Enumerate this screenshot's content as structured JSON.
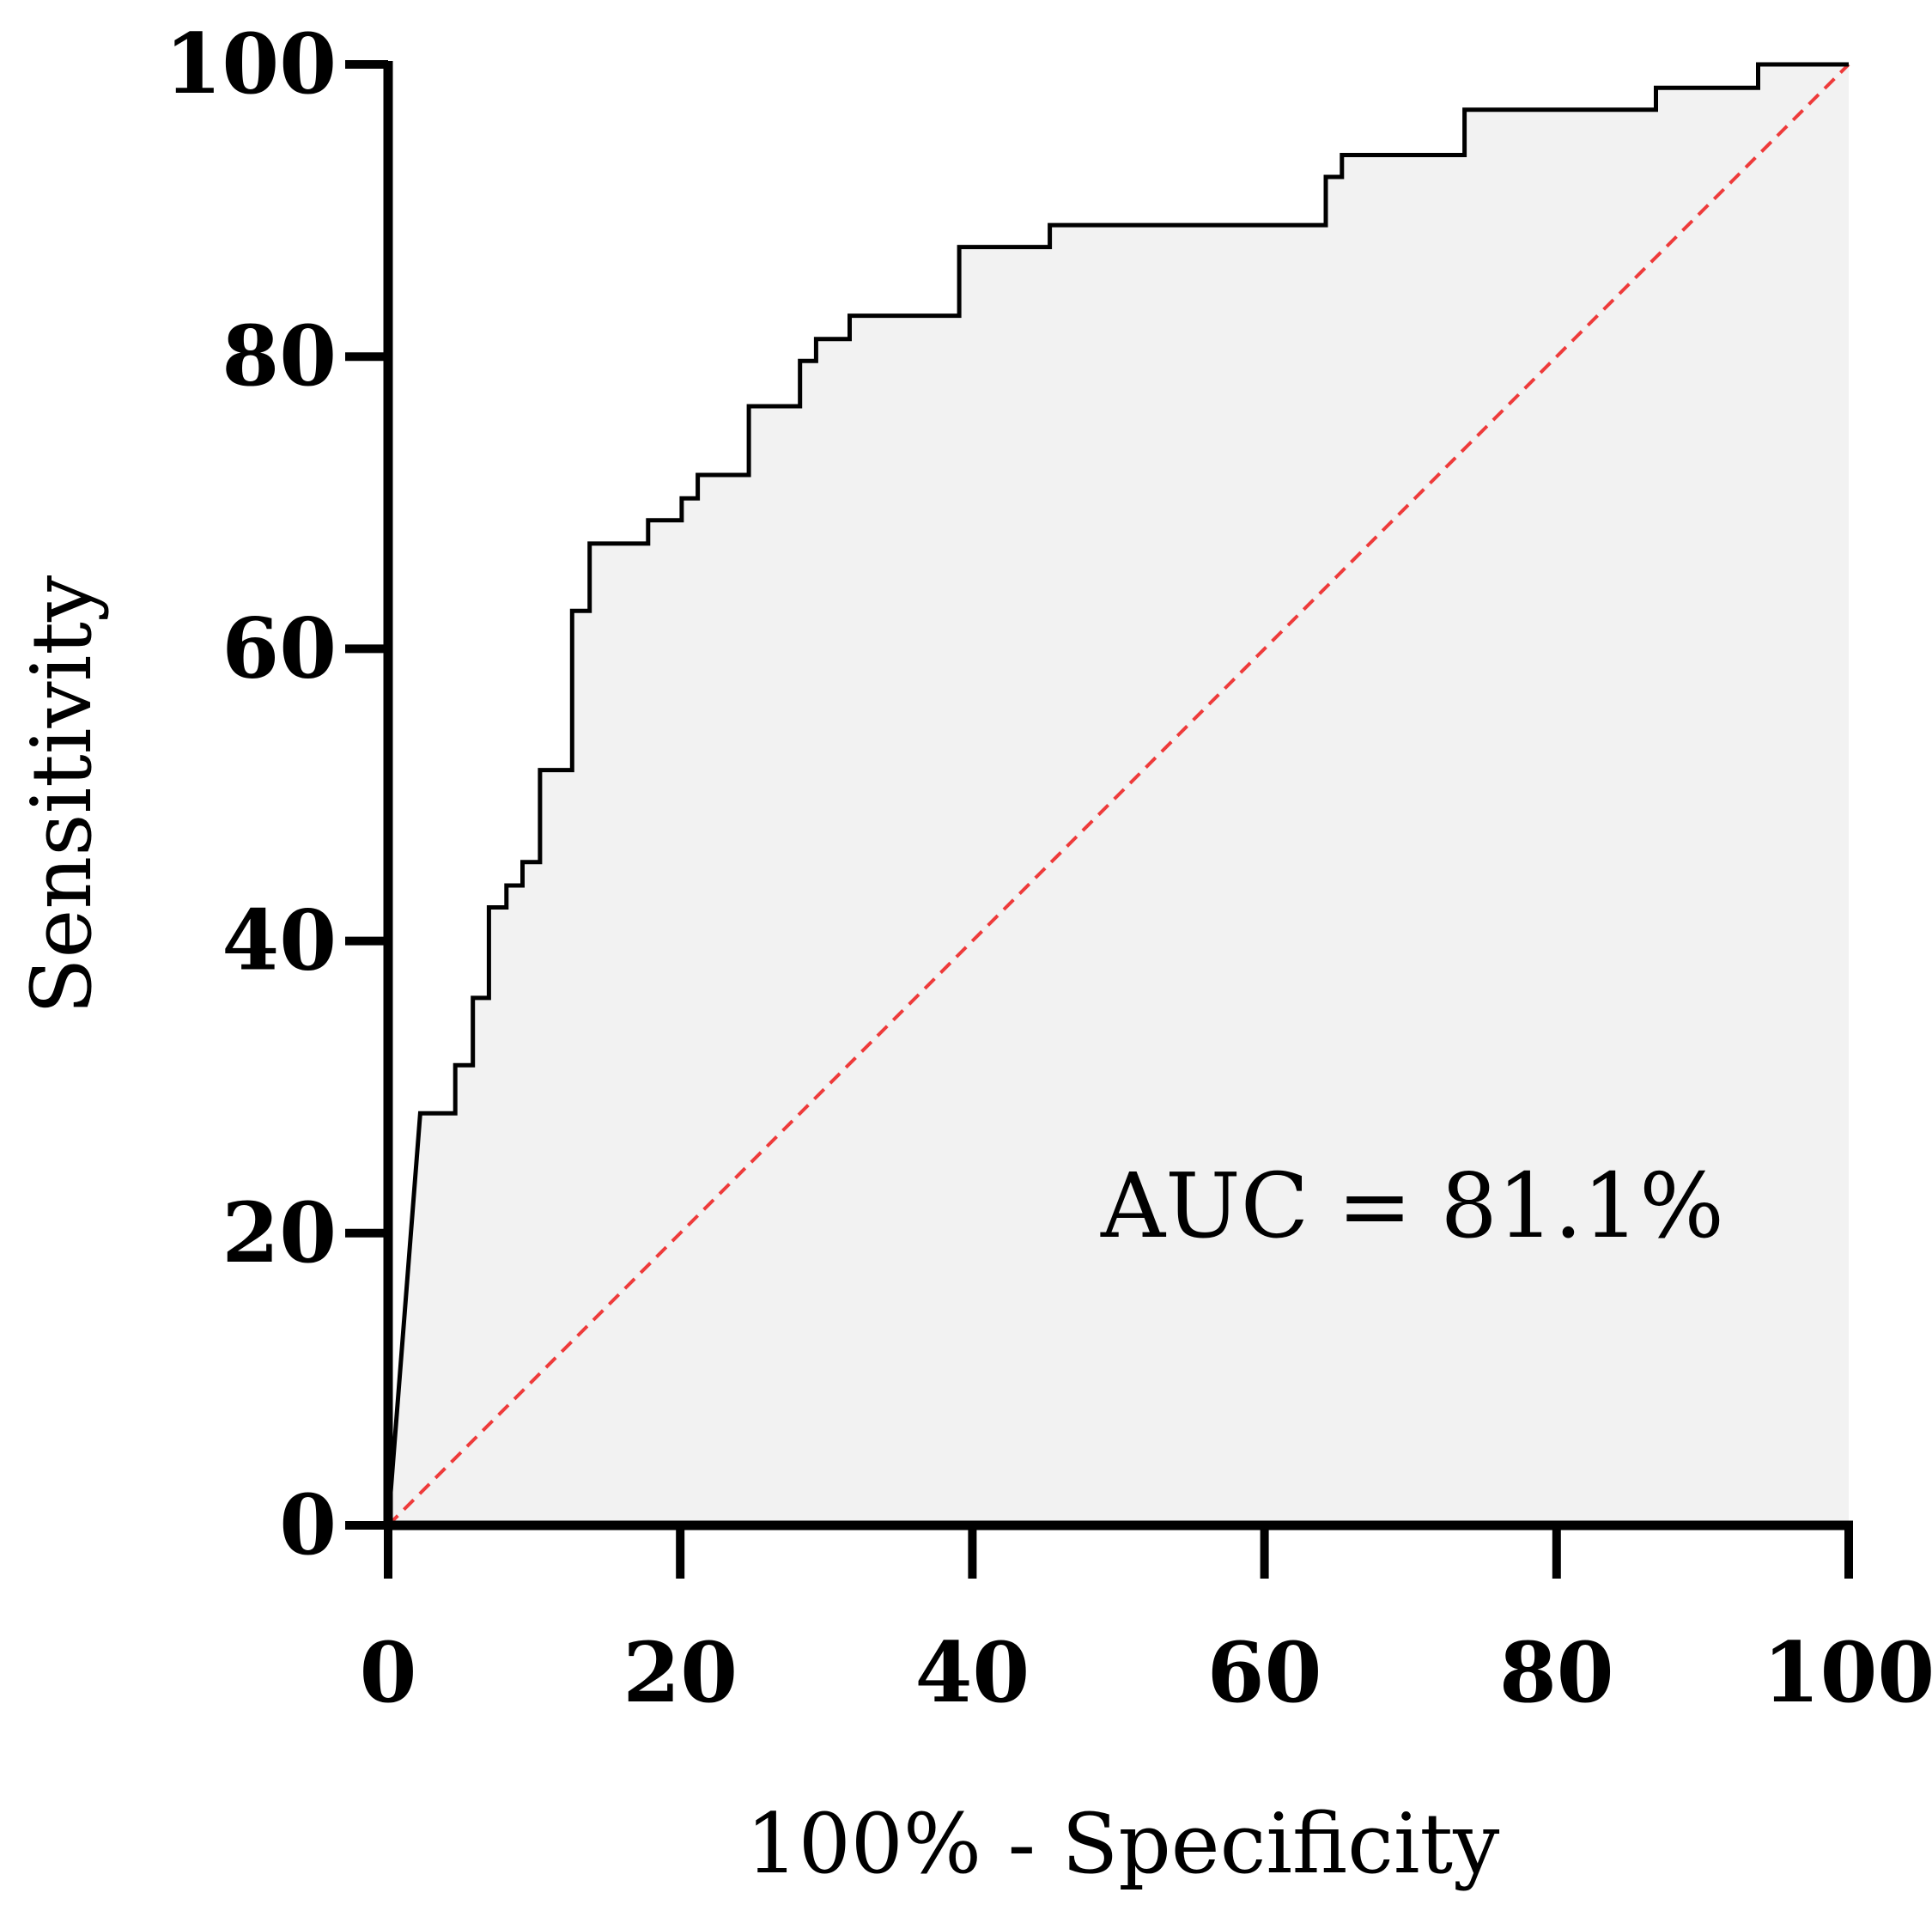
{
  "chart_data": {
    "type": "line",
    "title": "",
    "xlabel": "100% - Specificity",
    "ylabel": "Sensitivity",
    "xlim": [
      0,
      100
    ],
    "ylim": [
      0,
      100
    ],
    "xticks": [
      0,
      20,
      40,
      60,
      80,
      100
    ],
    "yticks": [
      0,
      20,
      40,
      60,
      80,
      100
    ],
    "grid": false,
    "annotation": "AUC = 81.1%",
    "colors": {
      "roc": "#000000",
      "reference": "#ee3b3b",
      "area": "#f2f2f2"
    },
    "series": [
      {
        "name": "ROC curve",
        "x": [
          0,
          2.2,
          4.6,
          4.6,
          5.8,
          5.8,
          6.9,
          6.9,
          8.1,
          8.1,
          9.2,
          9.2,
          10.4,
          10.4,
          12.6,
          12.6,
          13.8,
          13.8,
          17.8,
          17.8,
          20.1,
          20.1,
          21.2,
          21.2,
          24.7,
          24.7,
          28.2,
          28.2,
          29.3,
          29.3,
          31.6,
          31.6,
          39.1,
          39.1,
          45.3,
          45.3,
          64.2,
          64.2,
          65.3,
          65.3,
          73.7,
          73.7,
          86.8,
          86.8,
          93.8,
          93.8,
          100
        ],
        "y": [
          0,
          28.2,
          28.2,
          31.5,
          31.5,
          36.1,
          36.1,
          42.3,
          42.3,
          43.8,
          43.8,
          45.4,
          45.4,
          51.7,
          51.7,
          62.6,
          62.6,
          67.2,
          67.2,
          68.8,
          68.8,
          70.3,
          70.3,
          71.9,
          71.9,
          76.6,
          76.6,
          79.7,
          79.7,
          81.2,
          81.2,
          82.8,
          82.8,
          87.5,
          87.5,
          89.0,
          89.0,
          92.3,
          92.3,
          93.8,
          93.8,
          96.9,
          96.9,
          98.4,
          98.4,
          100,
          100
        ]
      },
      {
        "name": "Reference line",
        "x": [
          0,
          100
        ],
        "y": [
          0,
          100
        ]
      }
    ]
  }
}
